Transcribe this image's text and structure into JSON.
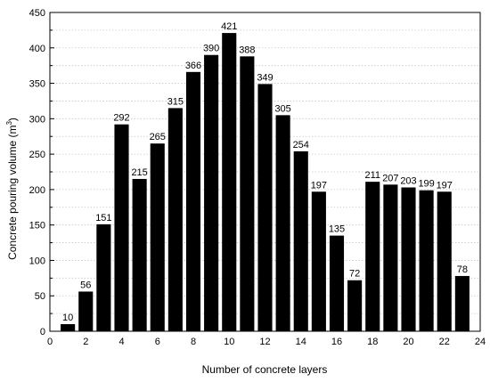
{
  "chart_data": {
    "type": "bar",
    "xlabel": "Number of concrete layers",
    "ylabel": "Concrete pouring volume (m",
    "ylabel_superscript": "3",
    "ylabel_suffix": ")",
    "x": [
      1,
      2,
      3,
      4,
      5,
      6,
      7,
      8,
      9,
      10,
      11,
      12,
      13,
      14,
      15,
      16,
      17,
      18,
      19,
      20,
      21,
      22,
      23
    ],
    "values": [
      10,
      56,
      151,
      292,
      215,
      265,
      315,
      366,
      390,
      421,
      388,
      349,
      305,
      254,
      197,
      135,
      72,
      211,
      207,
      203,
      199,
      197,
      78
    ],
    "xlim": [
      0,
      24
    ],
    "ylim": [
      0,
      450
    ],
    "xticks": [
      0,
      2,
      4,
      6,
      8,
      10,
      12,
      14,
      16,
      18,
      20,
      22,
      24
    ],
    "yticks": [
      0,
      50,
      100,
      150,
      200,
      250,
      300,
      350,
      400,
      450
    ],
    "grid": true,
    "bar_color": "#000000",
    "show_data_labels": true
  }
}
